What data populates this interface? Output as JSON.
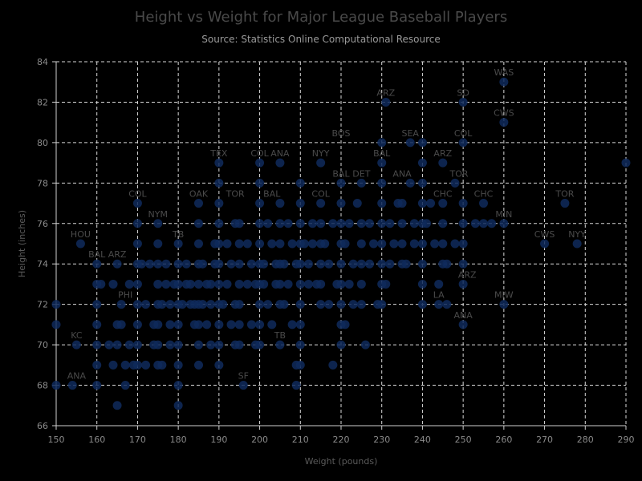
{
  "chart_data": {
    "type": "scatter",
    "title": "Height vs Weight for Major League Baseball Players",
    "subtitle": "Source: Statistics Online Computational Resource",
    "xlabel": "Weight (pounds)",
    "ylabel": "Height (inches)",
    "xlim": [
      150,
      290
    ],
    "ylim": [
      66,
      84
    ],
    "xticks": [
      150,
      160,
      170,
      180,
      190,
      200,
      210,
      220,
      230,
      240,
      250,
      260,
      270,
      280,
      290
    ],
    "yticks": [
      66,
      68,
      70,
      72,
      74,
      76,
      78,
      80,
      82,
      84
    ],
    "grid": true,
    "marker_color": "#0f2a5c",
    "points": [
      [
        150,
        72
      ],
      [
        150,
        71
      ],
      [
        150,
        68
      ],
      [
        154,
        68
      ],
      [
        155,
        70
      ],
      [
        156,
        75
      ],
      [
        160,
        74
      ],
      [
        160,
        73
      ],
      [
        160,
        72
      ],
      [
        160,
        71
      ],
      [
        160,
        70
      ],
      [
        160,
        69
      ],
      [
        160,
        68
      ],
      [
        161,
        73
      ],
      [
        163,
        70
      ],
      [
        164,
        73
      ],
      [
        164,
        69
      ],
      [
        165,
        71
      ],
      [
        165,
        70
      ],
      [
        165,
        74
      ],
      [
        165,
        67
      ],
      [
        166,
        72
      ],
      [
        166,
        71
      ],
      [
        167,
        69
      ],
      [
        167,
        68
      ],
      [
        168,
        70
      ],
      [
        168,
        73
      ],
      [
        169,
        69
      ],
      [
        170,
        77
      ],
      [
        170,
        76
      ],
      [
        170,
        75
      ],
      [
        170,
        74
      ],
      [
        170,
        73
      ],
      [
        170,
        72
      ],
      [
        170,
        71
      ],
      [
        170,
        70
      ],
      [
        170,
        69
      ],
      [
        171,
        74
      ],
      [
        172,
        72
      ],
      [
        172,
        69
      ],
      [
        173,
        74
      ],
      [
        174,
        71
      ],
      [
        174,
        70
      ],
      [
        175,
        76
      ],
      [
        175,
        75
      ],
      [
        175,
        74
      ],
      [
        175,
        73
      ],
      [
        175,
        72
      ],
      [
        175,
        71
      ],
      [
        175,
        70
      ],
      [
        175,
        69
      ],
      [
        176,
        72
      ],
      [
        176,
        69
      ],
      [
        177,
        74
      ],
      [
        177,
        73
      ],
      [
        178,
        72
      ],
      [
        178,
        71
      ],
      [
        178,
        70
      ],
      [
        179,
        73
      ],
      [
        180,
        75
      ],
      [
        180,
        74
      ],
      [
        180,
        73
      ],
      [
        180,
        72
      ],
      [
        180,
        71
      ],
      [
        180,
        70
      ],
      [
        180,
        69
      ],
      [
        180,
        68
      ],
      [
        180,
        67
      ],
      [
        181,
        72
      ],
      [
        182,
        74
      ],
      [
        182,
        73
      ],
      [
        183,
        73
      ],
      [
        183,
        72
      ],
      [
        184,
        72
      ],
      [
        184,
        71
      ],
      [
        185,
        77
      ],
      [
        185,
        76
      ],
      [
        185,
        75
      ],
      [
        185,
        74
      ],
      [
        185,
        73
      ],
      [
        185,
        72
      ],
      [
        185,
        71
      ],
      [
        185,
        70
      ],
      [
        185,
        69
      ],
      [
        186,
        74
      ],
      [
        186,
        72
      ],
      [
        187,
        73
      ],
      [
        187,
        71
      ],
      [
        188,
        73
      ],
      [
        188,
        72
      ],
      [
        188,
        70
      ],
      [
        189,
        75
      ],
      [
        189,
        74
      ],
      [
        190,
        79
      ],
      [
        190,
        78
      ],
      [
        190,
        77
      ],
      [
        190,
        76
      ],
      [
        190,
        75
      ],
      [
        190,
        74
      ],
      [
        190,
        73
      ],
      [
        190,
        72
      ],
      [
        190,
        71
      ],
      [
        190,
        70
      ],
      [
        190,
        69
      ],
      [
        191,
        72
      ],
      [
        192,
        75
      ],
      [
        192,
        73
      ],
      [
        193,
        74
      ],
      [
        193,
        71
      ],
      [
        194,
        76
      ],
      [
        194,
        72
      ],
      [
        194,
        70
      ],
      [
        195,
        76
      ],
      [
        195,
        75
      ],
      [
        195,
        74
      ],
      [
        195,
        73
      ],
      [
        195,
        72
      ],
      [
        195,
        71
      ],
      [
        195,
        70
      ],
      [
        196,
        68
      ],
      [
        197,
        75
      ],
      [
        197,
        73
      ],
      [
        198,
        74
      ],
      [
        198,
        71
      ],
      [
        199,
        73
      ],
      [
        199,
        70
      ],
      [
        200,
        79
      ],
      [
        200,
        78
      ],
      [
        200,
        77
      ],
      [
        200,
        76
      ],
      [
        200,
        75
      ],
      [
        200,
        74
      ],
      [
        200,
        73
      ],
      [
        200,
        72
      ],
      [
        200,
        71
      ],
      [
        200,
        70
      ],
      [
        201,
        74
      ],
      [
        201,
        73
      ],
      [
        202,
        76
      ],
      [
        202,
        72
      ],
      [
        203,
        75
      ],
      [
        203,
        71
      ],
      [
        204,
        74
      ],
      [
        204,
        73
      ],
      [
        205,
        79
      ],
      [
        205,
        77
      ],
      [
        205,
        76
      ],
      [
        205,
        75
      ],
      [
        205,
        74
      ],
      [
        205,
        73
      ],
      [
        205,
        72
      ],
      [
        205,
        70
      ],
      [
        206,
        74
      ],
      [
        206,
        72
      ],
      [
        207,
        76
      ],
      [
        207,
        73
      ],
      [
        208,
        75
      ],
      [
        208,
        71
      ],
      [
        209,
        74
      ],
      [
        209,
        69
      ],
      [
        209,
        68
      ],
      [
        210,
        78
      ],
      [
        210,
        77
      ],
      [
        210,
        76
      ],
      [
        210,
        75
      ],
      [
        210,
        74
      ],
      [
        210,
        73
      ],
      [
        210,
        72
      ],
      [
        210,
        71
      ],
      [
        210,
        70
      ],
      [
        210,
        69
      ],
      [
        211,
        75
      ],
      [
        212,
        74
      ],
      [
        212,
        73
      ],
      [
        213,
        76
      ],
      [
        213,
        75
      ],
      [
        214,
        73
      ],
      [
        215,
        79
      ],
      [
        215,
        77
      ],
      [
        215,
        76
      ],
      [
        215,
        75
      ],
      [
        215,
        74
      ],
      [
        215,
        73
      ],
      [
        215,
        72
      ],
      [
        216,
        75
      ],
      [
        217,
        74
      ],
      [
        217,
        72
      ],
      [
        218,
        76
      ],
      [
        218,
        69
      ],
      [
        219,
        73
      ],
      [
        220,
        78
      ],
      [
        220,
        77
      ],
      [
        220,
        76
      ],
      [
        220,
        75
      ],
      [
        220,
        74
      ],
      [
        220,
        73
      ],
      [
        220,
        72
      ],
      [
        220,
        71
      ],
      [
        220,
        70
      ],
      [
        221,
        75
      ],
      [
        221,
        71
      ],
      [
        222,
        76
      ],
      [
        222,
        73
      ],
      [
        223,
        74
      ],
      [
        223,
        72
      ],
      [
        224,
        77
      ],
      [
        225,
        78
      ],
      [
        225,
        76
      ],
      [
        225,
        75
      ],
      [
        225,
        74
      ],
      [
        225,
        73
      ],
      [
        225,
        72
      ],
      [
        226,
        70
      ],
      [
        227,
        76
      ],
      [
        227,
        74
      ],
      [
        228,
        75
      ],
      [
        229,
        72
      ],
      [
        230,
        80
      ],
      [
        230,
        79
      ],
      [
        230,
        78
      ],
      [
        230,
        77
      ],
      [
        230,
        76
      ],
      [
        230,
        75
      ],
      [
        230,
        74
      ],
      [
        230,
        73
      ],
      [
        230,
        72
      ],
      [
        231,
        82
      ],
      [
        231,
        73
      ],
      [
        232,
        74
      ],
      [
        232,
        76
      ],
      [
        233,
        75
      ],
      [
        234,
        77
      ],
      [
        235,
        77
      ],
      [
        235,
        76
      ],
      [
        235,
        75
      ],
      [
        235,
        74
      ],
      [
        236,
        74
      ],
      [
        237,
        78
      ],
      [
        237,
        80
      ],
      [
        238,
        75
      ],
      [
        238,
        76
      ],
      [
        240,
        80
      ],
      [
        240,
        79
      ],
      [
        240,
        78
      ],
      [
        240,
        77
      ],
      [
        240,
        76
      ],
      [
        240,
        75
      ],
      [
        240,
        74
      ],
      [
        240,
        73
      ],
      [
        240,
        72
      ],
      [
        241,
        76
      ],
      [
        242,
        77
      ],
      [
        243,
        75
      ],
      [
        244,
        73
      ],
      [
        244,
        72
      ],
      [
        245,
        79
      ],
      [
        245,
        77
      ],
      [
        245,
        76
      ],
      [
        245,
        75
      ],
      [
        245,
        74
      ],
      [
        246,
        74
      ],
      [
        246,
        72
      ],
      [
        248,
        75
      ],
      [
        248,
        78
      ],
      [
        250,
        82
      ],
      [
        250,
        80
      ],
      [
        250,
        77
      ],
      [
        250,
        76
      ],
      [
        250,
        75
      ],
      [
        250,
        74
      ],
      [
        250,
        73
      ],
      [
        250,
        71
      ],
      [
        253,
        76
      ],
      [
        255,
        77
      ],
      [
        255,
        76
      ],
      [
        257,
        76
      ],
      [
        260,
        83
      ],
      [
        260,
        81
      ],
      [
        260,
        76
      ],
      [
        260,
        72
      ],
      [
        270,
        75
      ],
      [
        275,
        77
      ],
      [
        278,
        75
      ],
      [
        290,
        79
      ]
    ],
    "annotations": [
      {
        "label": "WAS",
        "x": 260,
        "y": 83
      },
      {
        "label": "ARZ",
        "x": 231,
        "y": 82
      },
      {
        "label": "SD",
        "x": 250,
        "y": 82
      },
      {
        "label": "CWS",
        "x": 260,
        "y": 81
      },
      {
        "label": "BOS",
        "x": 220,
        "y": 80
      },
      {
        "label": "SEA",
        "x": 237,
        "y": 80
      },
      {
        "label": "COL",
        "x": 250,
        "y": 80
      },
      {
        "label": "TEX",
        "x": 190,
        "y": 79
      },
      {
        "label": "COL",
        "x": 200,
        "y": 79
      },
      {
        "label": "ANA",
        "x": 205,
        "y": 79
      },
      {
        "label": "NYY",
        "x": 215,
        "y": 79
      },
      {
        "label": "BAL",
        "x": 230,
        "y": 79
      },
      {
        "label": "ARZ",
        "x": 245,
        "y": 79
      },
      {
        "label": "BAL",
        "x": 220,
        "y": 78
      },
      {
        "label": "DET",
        "x": 225,
        "y": 78
      },
      {
        "label": "ANA",
        "x": 235,
        "y": 78
      },
      {
        "label": "TOR",
        "x": 249,
        "y": 78
      },
      {
        "label": "COL",
        "x": 170,
        "y": 77
      },
      {
        "label": "OAK",
        "x": 185,
        "y": 77
      },
      {
        "label": "TOR",
        "x": 194,
        "y": 77
      },
      {
        "label": "BAL",
        "x": 203,
        "y": 77
      },
      {
        "label": "COL",
        "x": 215,
        "y": 77
      },
      {
        "label": "CHC",
        "x": 245,
        "y": 77
      },
      {
        "label": "CHC",
        "x": 255,
        "y": 77
      },
      {
        "label": "TOR",
        "x": 275,
        "y": 77
      },
      {
        "label": "NYM",
        "x": 175,
        "y": 76
      },
      {
        "label": "MIN",
        "x": 260,
        "y": 76
      },
      {
        "label": "HOU",
        "x": 156,
        "y": 75
      },
      {
        "label": "CWS",
        "x": 270,
        "y": 75
      },
      {
        "label": "NYY",
        "x": 278,
        "y": 75
      },
      {
        "label": "BAL",
        "x": 160,
        "y": 74
      },
      {
        "label": "ARZ",
        "x": 165,
        "y": 74
      },
      {
        "label": "TB",
        "x": 180,
        "y": 75
      },
      {
        "label": "ARZ",
        "x": 251,
        "y": 73
      },
      {
        "label": "PHI",
        "x": 167,
        "y": 72
      },
      {
        "label": "LA",
        "x": 244,
        "y": 72
      },
      {
        "label": "MIW",
        "x": 260,
        "y": 72
      },
      {
        "label": "ANA",
        "x": 250,
        "y": 71
      },
      {
        "label": "KC",
        "x": 155,
        "y": 70
      },
      {
        "label": "TB",
        "x": 205,
        "y": 70
      },
      {
        "label": "ANA",
        "x": 155,
        "y": 68
      },
      {
        "label": "SF",
        "x": 196,
        "y": 68
      }
    ]
  }
}
